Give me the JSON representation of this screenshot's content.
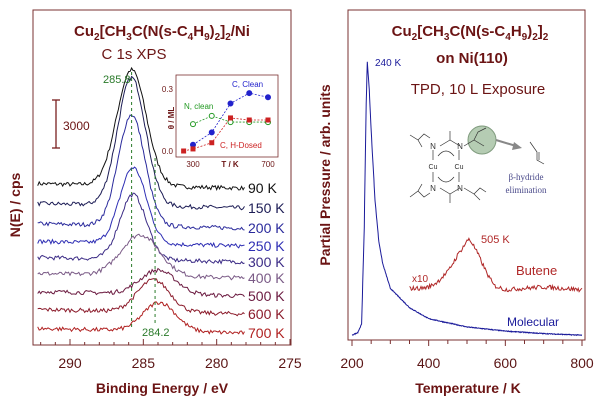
{
  "chart_data": [
    {
      "type": "line",
      "title": "Cu2[CH3C(N(s-C4H9)2]2/Ni",
      "title_parts": {
        "a": "Cu",
        "a_sub": "2",
        "b": "[CH",
        "b_sub": "3",
        "c": "C(N(s-C",
        "c_sub": "4",
        "d": "H",
        "d_sub": "9",
        "e": ")",
        "e_sub": "2",
        "f": "]",
        "f_sub": "2",
        "g": "/Ni"
      },
      "subtitle": "C 1s XPS",
      "xlabel": "Binding Energy / eV",
      "ylabel": "N(E) / cps",
      "xlim": [
        292,
        275
      ],
      "x_reversed": true,
      "xticks": [
        "290",
        "285",
        "280",
        "275"
      ],
      "scale_bar_label": "3000",
      "annotations": {
        "peak_high": "285.8",
        "peak_low": "284.2"
      },
      "series": [
        {
          "name": "90 K",
          "color": "#111111",
          "offset": 9800,
          "center": 285.8,
          "height": 7250,
          "sigma": 1.0
        },
        {
          "name": "150 K",
          "color": "#1c1c55",
          "offset": 8560,
          "center": 285.8,
          "height": 8000,
          "sigma": 0.95
        },
        {
          "name": "200 K",
          "color": "#2a2a9c",
          "offset": 7300,
          "center": 285.8,
          "height": 6940,
          "sigma": 0.9
        },
        {
          "name": "250 K",
          "color": "#2e2eb4",
          "offset": 6190,
          "center": 285.7,
          "height": 4750,
          "sigma": 0.9
        },
        {
          "name": "300 K",
          "color": "#3c2c86",
          "offset": 5190,
          "center": 285.7,
          "height": 4060,
          "sigma": 0.9
        },
        {
          "name": "400 K",
          "color": "#7a5a86",
          "offset": 4190,
          "center": 285.2,
          "height": 2560,
          "sigma": 1.3
        },
        {
          "name": "500 K",
          "color": "#6b1a40",
          "offset": 3060,
          "center": 284.0,
          "height": 1500,
          "sigma": 1.2
        },
        {
          "name": "600 K",
          "color": "#8b1a2a",
          "offset": 1940,
          "center": 284.3,
          "height": 2000,
          "sigma": 1.1
        },
        {
          "name": "700 K",
          "color": "#b02020",
          "offset": 750,
          "center": 283.9,
          "height": 1800,
          "sigma": 1.1
        }
      ],
      "inset": {
        "type": "line",
        "xlabel": "T / K",
        "ylabel": "θ / ML",
        "xticks": [
          "300",
          "700"
        ],
        "yticks": [
          "0.0",
          "0.3"
        ],
        "xlim": [
          220,
          730
        ],
        "ylim": [
          0,
          0.34
        ],
        "series": [
          {
            "name": "C, Clean",
            "color": "#2222cc",
            "marker": "filled-circle",
            "x": [
              300,
              400,
              500,
              600,
              700
            ],
            "y": [
              0.03,
              0.09,
              0.23,
              0.28,
              0.26
            ]
          },
          {
            "name": "N, clean",
            "color": "#229922",
            "marker": "open-circle",
            "x": [
              300,
              400,
              500,
              600,
              700
            ],
            "y": [
              0.13,
              0.17,
              0.14,
              0.14,
              0.14
            ]
          },
          {
            "name": "C, H-Dosed",
            "color": "#cc2222",
            "marker": "filled-square",
            "x": [
              250,
              300,
              400,
              500,
              600,
              700
            ],
            "y": [
              0.0,
              0.01,
              0.04,
              0.16,
              0.15,
              0.15
            ]
          }
        ]
      }
    },
    {
      "type": "line",
      "title_line1_parts": {
        "a": "Cu",
        "a_sub": "2",
        "b": "[CH",
        "b_sub": "3",
        "c": "C(N(s-C",
        "c_sub": "4",
        "d": "H",
        "d_sub": "9",
        "e": ")",
        "e_sub": "2",
        "f": "]",
        "f_sub": "2"
      },
      "title_line2": "on Ni(110)",
      "subtitle": "TPD,  10 L Exposure",
      "xlabel": "Temperature / K",
      "ylabel": "Partial Pressure / arb. units",
      "xlim": [
        200,
        800
      ],
      "xticks": [
        "200",
        "400",
        "600",
        "800"
      ],
      "series": [
        {
          "name": "Molecular",
          "color": "#1a1a9a",
          "peak_label": "240 K",
          "x": [
            200,
            215,
            225,
            232,
            237,
            240,
            245,
            250,
            260,
            270,
            280,
            300,
            350,
            400,
            500,
            600,
            700,
            800
          ],
          "y": [
            1,
            2,
            5,
            40,
            85,
            100,
            90,
            75,
            50,
            35,
            27,
            18,
            11,
            7,
            4,
            2.5,
            1.6,
            1
          ]
        },
        {
          "name": "Butene",
          "color": "#b02828",
          "peak_label": "505 K",
          "multiplier_label": "x10",
          "x": [
            350,
            380,
            400,
            420,
            450,
            480,
            495,
            505,
            515,
            530,
            550,
            570,
            600,
            700,
            800
          ],
          "y": [
            18,
            18,
            18.5,
            20,
            24,
            31,
            34,
            36,
            34,
            30,
            24,
            19,
            17.5,
            18.5,
            17.5
          ]
        }
      ],
      "molecule": {
        "atoms": {
          "cu1": "Cu",
          "cu2": "Cu",
          "n": "N"
        },
        "reaction_label_1": "β-hydride",
        "reaction_label_2": "elimination",
        "highlight_color": "#9db89a"
      }
    }
  ]
}
